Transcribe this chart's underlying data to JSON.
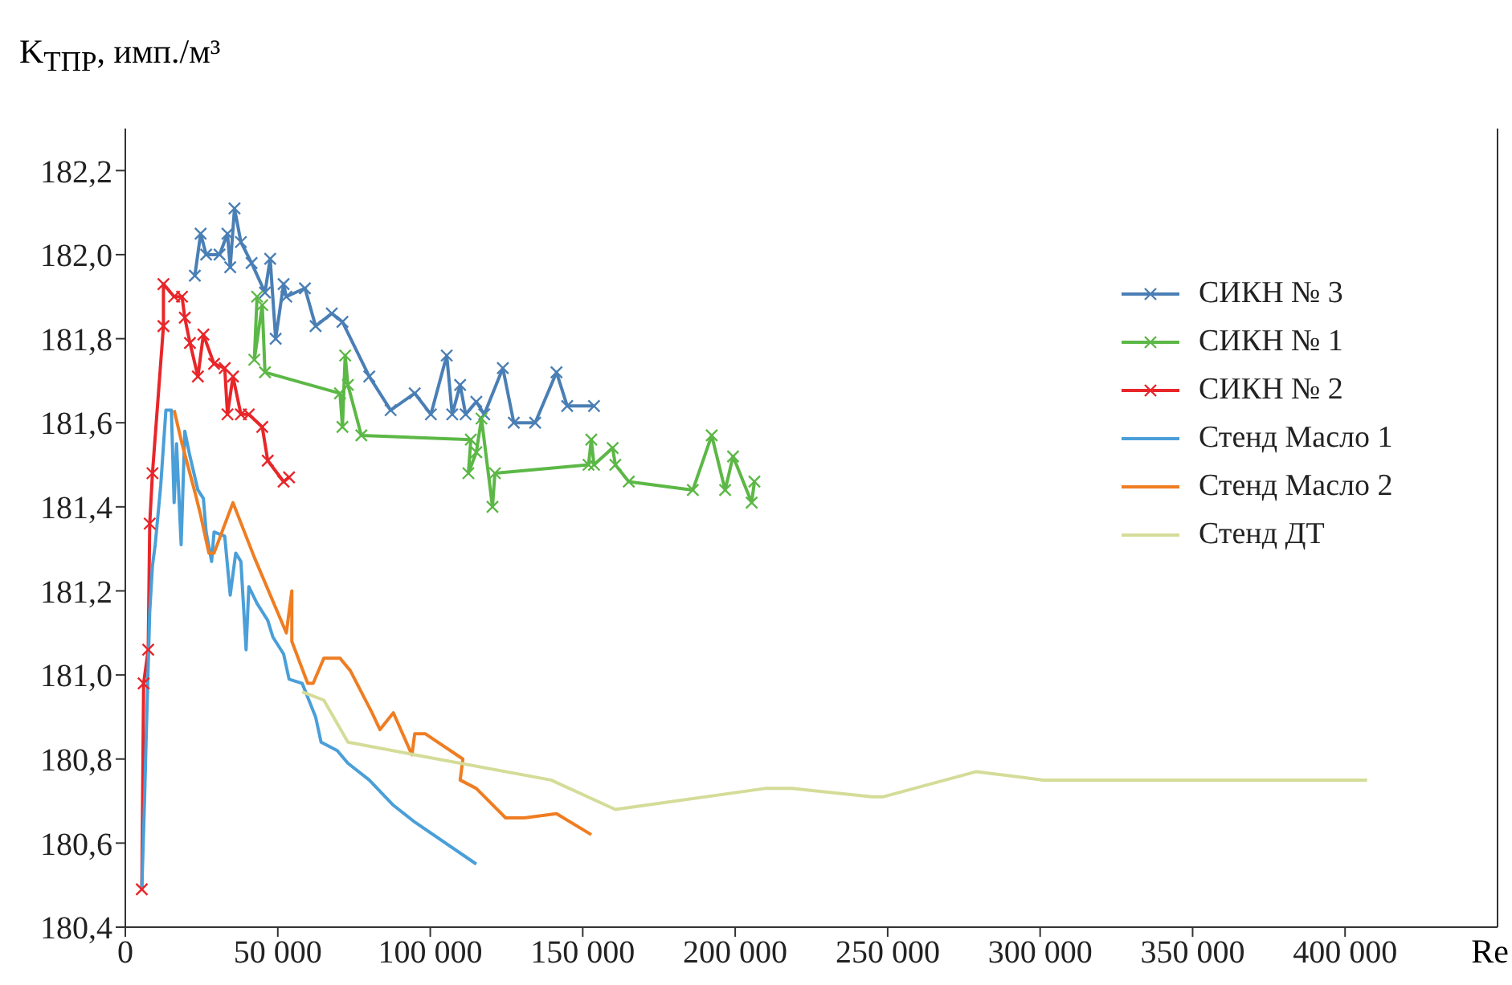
{
  "chart_data": {
    "type": "line",
    "ylabel": "K$_{ТПР}$, имп./м³",
    "xlabel": "Re",
    "xlim": [
      0,
      450000
    ],
    "xticks": [
      0,
      {
        "value": 50000,
        "label": "50 000"
      },
      {
        "value": 100000,
        "label": "100 000"
      },
      {
        "value": 150000,
        "label": "150 000"
      },
      {
        "value": 200000,
        "label": "200 000"
      },
      {
        "value": 250000,
        "label": "250 000"
      },
      {
        "value": 300000,
        "label": "300 000"
      },
      {
        "value": 350000,
        "label": "350 000"
      },
      {
        "value": 400000,
        "label": "400 000"
      }
    ],
    "ylim": [
      180.4,
      182.3
    ],
    "yticks": [
      {
        "value": 180.4,
        "label": "180,4"
      },
      {
        "value": 180.6,
        "label": "180,6"
      },
      {
        "value": 180.8,
        "label": "180,8"
      },
      {
        "value": 181.0,
        "label": "181,0"
      },
      {
        "value": 181.2,
        "label": "181,2"
      },
      {
        "value": 181.4,
        "label": "181,4"
      },
      {
        "value": 181.6,
        "label": "181,6"
      },
      {
        "value": 181.8,
        "label": "181,8"
      },
      {
        "value": 182.0,
        "label": "182,0"
      },
      {
        "value": 182.2,
        "label": "182,2"
      }
    ],
    "grid": false,
    "legend": "right",
    "line_style": "solid",
    "series": [
      {
        "name": "СИКН № 3",
        "color": "#4a7fb5",
        "marker": "cross",
        "x": [
          22800,
          24700,
          26500,
          30900,
          33500,
          34400,
          35800,
          37900,
          41400,
          45800,
          47500,
          49300,
          51900,
          52800,
          58900,
          62400,
          67700,
          71200,
          80000,
          87000,
          94900,
          100200,
          105400,
          107200,
          109800,
          111600,
          115100,
          117700,
          123800,
          127400,
          134400,
          141400,
          144900,
          153700
        ],
        "values": [
          181.95,
          182.05,
          182.0,
          182.0,
          182.05,
          181.97,
          182.11,
          182.03,
          181.98,
          181.91,
          181.99,
          181.8,
          181.93,
          181.9,
          181.92,
          181.83,
          181.86,
          181.84,
          181.71,
          181.63,
          181.67,
          181.62,
          181.76,
          181.62,
          181.69,
          181.62,
          181.65,
          181.62,
          181.73,
          181.6,
          181.6,
          181.72,
          181.64,
          181.64
        ]
      },
      {
        "name": "СИКН № 1",
        "color": "#5cb846",
        "marker": "cross",
        "x": [
          43200,
          42300,
          44900,
          45800,
          70400,
          71200,
          72100,
          73000,
          77400,
          113300,
          112500,
          115100,
          116800,
          120400,
          121200,
          151900,
          152800,
          153700,
          159800,
          160700,
          165100,
          186100,
          192300,
          196700,
          199300,
          205400,
          206300
        ],
        "values": [
          181.9,
          181.75,
          181.88,
          181.72,
          181.67,
          181.59,
          181.76,
          181.69,
          181.57,
          181.56,
          181.48,
          181.53,
          181.61,
          181.4,
          181.48,
          181.5,
          181.56,
          181.5,
          181.54,
          181.5,
          181.46,
          181.44,
          181.57,
          181.44,
          181.52,
          181.41,
          181.46
        ]
      },
      {
        "name": "СИКН № 2",
        "color": "#e8262a",
        "marker": "cross",
        "x": [
          5400,
          6000,
          7500,
          8000,
          8900,
          12500,
          12500,
          16000,
          18600,
          19500,
          21200,
          23800,
          25600,
          29100,
          32600,
          33500,
          35300,
          37900,
          40500,
          44900,
          46700,
          51900,
          53700
        ],
        "values": [
          180.49,
          180.98,
          181.06,
          181.36,
          181.48,
          181.83,
          181.93,
          181.9,
          181.9,
          181.85,
          181.79,
          181.71,
          181.81,
          181.74,
          181.73,
          181.62,
          181.71,
          181.62,
          181.62,
          181.59,
          181.51,
          181.46,
          181.47
        ]
      },
      {
        "name": "Стенд Масло 1",
        "color": "#4a9fd8",
        "marker": "none",
        "x": [
          5400,
          6300,
          6800,
          8000,
          8900,
          9800,
          11600,
          13300,
          15100,
          16000,
          16800,
          18300,
          19500,
          21200,
          23800,
          25600,
          26500,
          28300,
          29100,
          32600,
          34400,
          36200,
          37900,
          39600,
          40500,
          43200,
          46700,
          48400,
          51900,
          53700,
          58000,
          62400,
          64200,
          69500,
          73000,
          80000,
          87900,
          94900,
          115100
        ],
        "values": [
          180.49,
          180.7,
          180.84,
          181.15,
          181.26,
          181.31,
          181.45,
          181.63,
          181.63,
          181.41,
          181.55,
          181.31,
          181.58,
          181.52,
          181.44,
          181.42,
          181.34,
          181.27,
          181.34,
          181.33,
          181.19,
          181.29,
          181.27,
          181.06,
          181.21,
          181.17,
          181.13,
          181.09,
          181.05,
          180.99,
          180.98,
          180.9,
          180.84,
          180.82,
          180.79,
          180.75,
          180.69,
          180.65,
          180.55
        ]
      },
      {
        "name": "Стенд Масло 2",
        "color": "#ef7d22",
        "marker": "none",
        "x": [
          16000,
          18600,
          23000,
          24700,
          27400,
          29100,
          35300,
          42300,
          52800,
          54600,
          54600,
          59800,
          61600,
          65100,
          70400,
          73800,
          80900,
          83500,
          87900,
          94000,
          94900,
          98400,
          110700,
          109800,
          115100,
          124700,
          130900,
          141400,
          152800
        ],
        "values": [
          181.63,
          181.55,
          181.43,
          181.38,
          181.29,
          181.29,
          181.41,
          181.28,
          181.1,
          181.2,
          181.08,
          180.98,
          180.98,
          181.04,
          181.04,
          181.01,
          180.91,
          180.87,
          180.91,
          180.81,
          180.86,
          180.86,
          180.8,
          180.75,
          180.73,
          180.66,
          180.66,
          180.67,
          180.62
        ]
      },
      {
        "name": "Стенд ДТ",
        "color": "#d4dc98",
        "marker": "none",
        "x": [
          58000,
          65100,
          73000,
          94900,
          139600,
          160700,
          209800,
          218600,
          244900,
          248400,
          279100,
          301000,
          328300,
          352800,
          393100,
          407200
        ],
        "values": [
          180.96,
          180.94,
          180.84,
          180.81,
          180.75,
          180.68,
          180.73,
          180.73,
          180.71,
          180.71,
          180.77,
          180.75,
          180.75,
          180.75,
          180.75,
          180.75
        ]
      }
    ]
  }
}
